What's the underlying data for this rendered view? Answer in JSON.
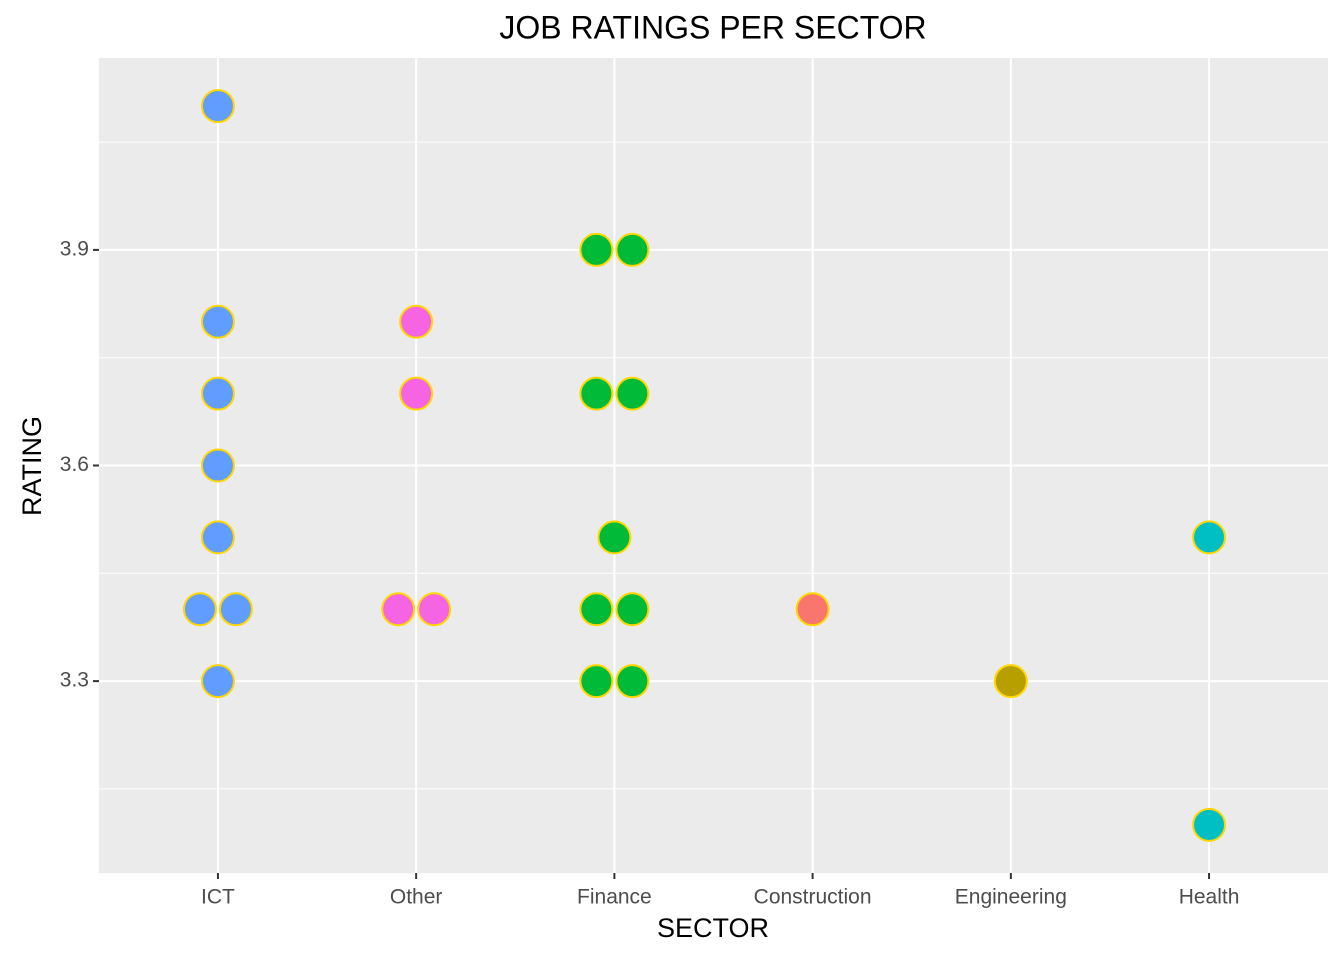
{
  "chart_data": {
    "type": "dotplot",
    "title": "JOB RATINGS PER SECTOR",
    "x_label": "SECTOR",
    "y_label": "RATING",
    "categories": [
      "ICT",
      "Other",
      "Finance",
      "Construction",
      "Engineering",
      "Health"
    ],
    "colors": [
      "#619CFF",
      "#F564E3",
      "#00BA38",
      "#F8766D",
      "#B79F00",
      "#00BFC4"
    ],
    "outline_color": "#FFD700",
    "values": [
      [
        4.1,
        3.8,
        3.7,
        3.6,
        3.5,
        3.4,
        3.4,
        3.3
      ],
      [
        3.8,
        3.7,
        3.4,
        3.4
      ],
      [
        3.9,
        3.9,
        3.7,
        3.7,
        3.5,
        3.4,
        3.4,
        3.3,
        3.3
      ],
      [
        3.4
      ],
      [
        3.3
      ],
      [
        3.5,
        3.1
      ]
    ],
    "ylim": [
      3.033,
      4.167
    ],
    "yticks": [
      3.3,
      3.6,
      3.9
    ],
    "minor_yticks": [
      3.15,
      3.45,
      3.75,
      4.05
    ],
    "grid": true
  }
}
